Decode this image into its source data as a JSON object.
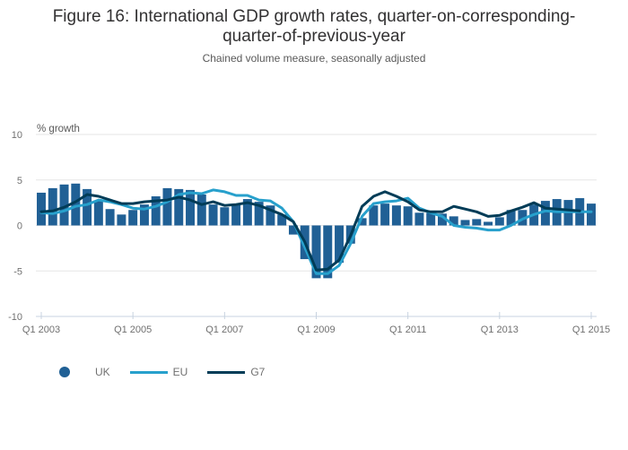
{
  "header": {
    "title_line1": "Figure 16: International GDP growth rates, quarter-on-corresponding-",
    "title_line2": "quarter-of-previous-year",
    "subtitle": "Chained volume measure, seasonally adjusted"
  },
  "legend": [
    {
      "label": "UK",
      "shape": "dot",
      "color": "#206095"
    },
    {
      "label": "EU",
      "shape": "line",
      "color": "#27a0cc"
    },
    {
      "label": "G7",
      "shape": "line",
      "color": "#003c57"
    }
  ],
  "chart_data": {
    "type": "bar+line",
    "title": "Figure 16: International GDP growth rates, quarter-on-corresponding-quarter-of-previous-year",
    "subtitle": "Chained volume measure, seasonally adjusted",
    "xlabel": "",
    "ylabel": "% growth",
    "ylim": [
      -10,
      10
    ],
    "yticks": [
      10,
      5,
      0,
      -5,
      -10
    ],
    "xtick_labels": [
      "Q1 2003",
      "Q1 2005",
      "Q1 2007",
      "Q1 2009",
      "Q1 2011",
      "Q1 2013",
      "Q1 2015"
    ],
    "xtick_indices": [
      0,
      8,
      16,
      24,
      32,
      40,
      48
    ],
    "grid": true,
    "legend_position": "bottom-left",
    "x": [
      "Q1 2003",
      "Q2 2003",
      "Q3 2003",
      "Q4 2003",
      "Q1 2004",
      "Q2 2004",
      "Q3 2004",
      "Q4 2004",
      "Q1 2005",
      "Q2 2005",
      "Q3 2005",
      "Q4 2005",
      "Q1 2006",
      "Q2 2006",
      "Q3 2006",
      "Q4 2006",
      "Q1 2007",
      "Q2 2007",
      "Q3 2007",
      "Q4 2007",
      "Q1 2008",
      "Q2 2008",
      "Q3 2008",
      "Q4 2008",
      "Q1 2009",
      "Q2 2009",
      "Q3 2009",
      "Q4 2009",
      "Q1 2010",
      "Q2 2010",
      "Q3 2010",
      "Q4 2010",
      "Q1 2011",
      "Q2 2011",
      "Q3 2011",
      "Q4 2011",
      "Q1 2012",
      "Q2 2012",
      "Q3 2012",
      "Q4 2012",
      "Q1 2013",
      "Q2 2013",
      "Q3 2013",
      "Q4 2013",
      "Q1 2014",
      "Q2 2014",
      "Q3 2014",
      "Q4 2014",
      "Q1 2015"
    ],
    "series": [
      {
        "name": "UK",
        "type": "bar",
        "color": "#206095",
        "values": [
          3.6,
          4.1,
          4.5,
          4.6,
          4.0,
          2.7,
          1.8,
          1.2,
          1.7,
          2.3,
          3.2,
          4.1,
          4.0,
          3.9,
          3.4,
          2.3,
          2.0,
          2.3,
          2.9,
          2.6,
          2.2,
          1.2,
          -1.0,
          -3.7,
          -5.8,
          -5.8,
          -4.1,
          -2.0,
          0.8,
          2.2,
          2.4,
          2.2,
          2.1,
          1.4,
          1.4,
          1.3,
          1.0,
          0.6,
          0.7,
          0.4,
          0.9,
          1.7,
          1.7,
          2.3,
          2.7,
          2.9,
          2.8,
          3.0,
          2.4
        ]
      },
      {
        "name": "EU",
        "type": "line",
        "color": "#27a0cc",
        "values": [
          1.4,
          1.3,
          1.6,
          2.1,
          2.3,
          2.8,
          2.6,
          2.3,
          1.9,
          1.8,
          2.1,
          2.6,
          3.4,
          3.6,
          3.5,
          3.9,
          3.7,
          3.3,
          3.3,
          2.8,
          2.7,
          1.9,
          0.4,
          -2.4,
          -5.3,
          -5.3,
          -4.4,
          -2.0,
          1.0,
          2.4,
          2.6,
          2.7,
          3.0,
          1.9,
          1.4,
          1.0,
          0.0,
          -0.2,
          -0.3,
          -0.5,
          -0.5,
          0.0,
          0.7,
          1.2,
          1.6,
          1.5,
          1.5,
          1.5,
          1.5
        ]
      },
      {
        "name": "G7",
        "type": "line",
        "color": "#003c57",
        "values": [
          1.5,
          1.6,
          2.0,
          2.6,
          3.4,
          3.2,
          2.8,
          2.4,
          2.4,
          2.6,
          2.7,
          2.8,
          3.1,
          2.8,
          2.3,
          2.6,
          2.2,
          2.3,
          2.5,
          2.2,
          1.7,
          1.2,
          0.4,
          -1.8,
          -4.9,
          -4.8,
          -3.8,
          -1.1,
          2.1,
          3.2,
          3.7,
          3.2,
          2.6,
          1.7,
          1.5,
          1.5,
          2.1,
          1.8,
          1.5,
          1.0,
          1.1,
          1.6,
          2.0,
          2.5,
          1.9,
          1.8,
          1.7,
          1.6,
          null
        ]
      }
    ]
  }
}
